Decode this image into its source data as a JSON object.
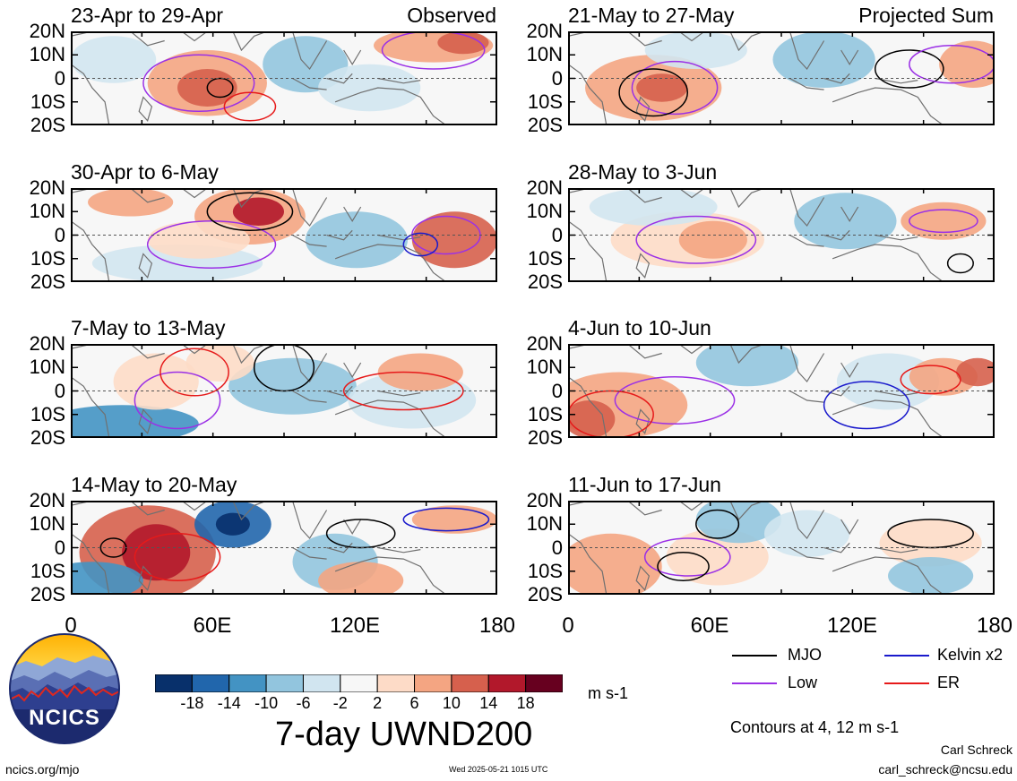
{
  "panels_observed": [
    {
      "title": "23-Apr to 29-Apr",
      "corner_label": "Observed"
    },
    {
      "title": "30-Apr to 6-May"
    },
    {
      "title": "7-May to 13-May"
    },
    {
      "title": "14-May to 20-May"
    }
  ],
  "panels_projected": [
    {
      "title": "21-May to 27-May",
      "corner_label": "Projected Sum"
    },
    {
      "title": "28-May to 3-Jun"
    },
    {
      "title": "4-Jun to 10-Jun"
    },
    {
      "title": "11-Jun to 17-Jun"
    }
  ],
  "lat_labels": [
    "20N",
    "10N",
    "0",
    "10S",
    "20S"
  ],
  "lon_labels": [
    "0",
    "60E",
    "120E",
    "180"
  ],
  "legend": {
    "items": [
      {
        "label": "MJO",
        "color": "#000000"
      },
      {
        "label": "Kelvin x2",
        "color": "#1a1acc"
      },
      {
        "label": "Low",
        "color": "#9b30e6"
      },
      {
        "label": "ER",
        "color": "#e61a1a"
      }
    ],
    "contours_note": "Contours at 4, 12 m s-1"
  },
  "colorbar": {
    "ticks": [
      "-18",
      "-14",
      "-10",
      "-6",
      "-2",
      "2",
      "6",
      "10",
      "14",
      "18"
    ],
    "colors": [
      "#08306b",
      "#2166ac",
      "#4393c3",
      "#92c5de",
      "#d1e5f0",
      "#f7f7f7",
      "#fddbc7",
      "#f4a582",
      "#d6604d",
      "#b2182b",
      "#67001f"
    ],
    "units": "m s-1"
  },
  "main_title": "7-day UWND200",
  "logo_text": "NCICS",
  "footer": {
    "url": "ncics.org/mjo",
    "timestamp": "Wed 2025-05-21 1015 UTC",
    "author": "Carl Schreck",
    "email": "carl_schreck@ncsu.edu"
  }
}
